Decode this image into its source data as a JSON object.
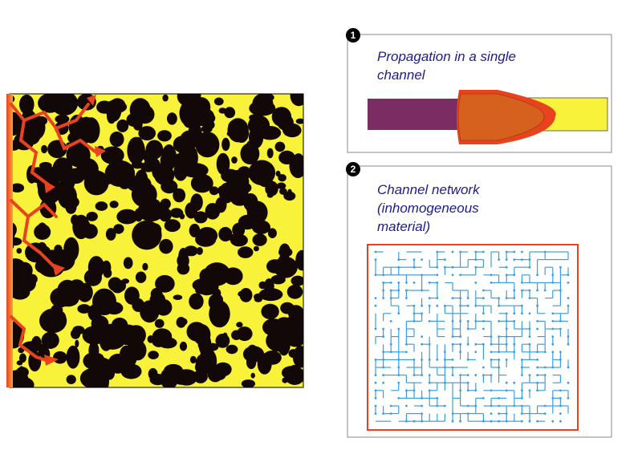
{
  "panels": [
    {
      "marker": "1",
      "title_lines": [
        "Propagation in a single",
        "channel"
      ]
    },
    {
      "marker": "2",
      "title_lines": [
        "Channel network",
        "(inhomogeneous",
        "material)"
      ]
    }
  ]
}
